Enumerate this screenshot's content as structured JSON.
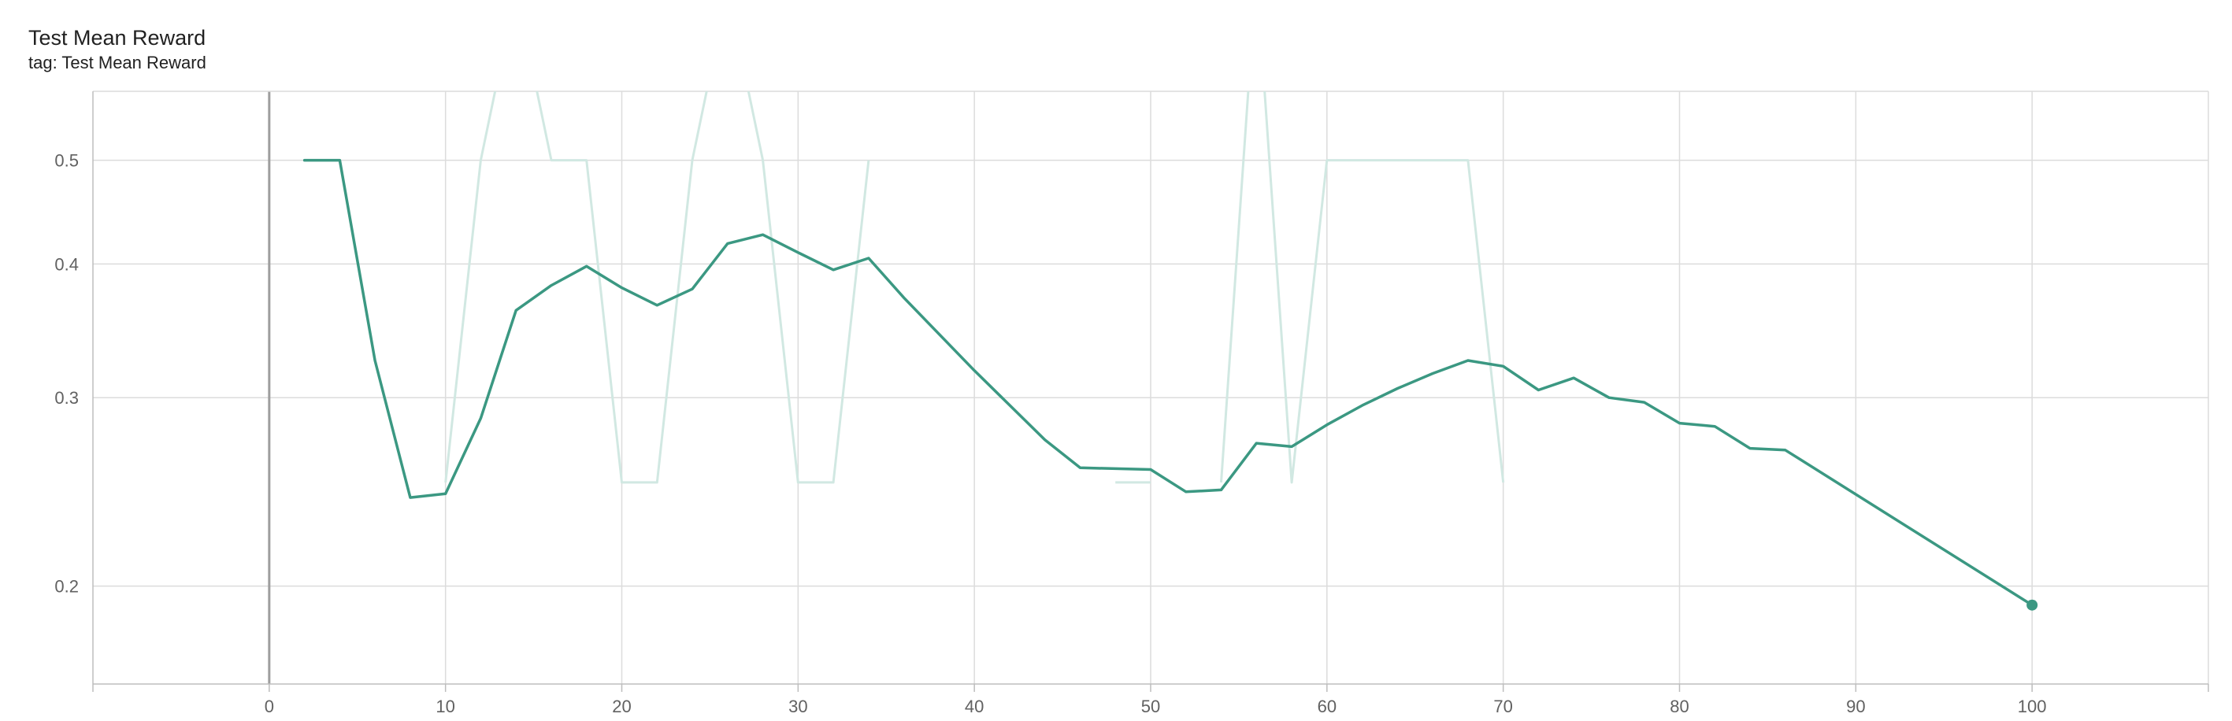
{
  "chart_data": {
    "type": "line",
    "title": "Test Mean Reward",
    "subtitle": "tag: Test Mean Reward",
    "xlabel": "",
    "ylabel": "",
    "y_scale": "log",
    "grid": true,
    "xlim": [
      -10,
      110
    ],
    "ylim": [
      0.162,
      0.58
    ],
    "x_ticks": [
      "0",
      "10",
      "20",
      "30",
      "40",
      "50",
      "60",
      "70",
      "80",
      "90",
      "100"
    ],
    "y_ticks": [
      "0.2",
      "0.3",
      "0.4",
      "0.5"
    ],
    "x_tick_values": [
      0,
      10,
      20,
      30,
      40,
      50,
      60,
      70,
      80,
      90,
      100
    ],
    "y_tick_values": [
      0.2,
      0.3,
      0.4,
      0.5
    ],
    "colors": {
      "smoothed": "#3b9882",
      "raw": "#d1e8e2",
      "grid": "#dcdcdc",
      "zero_axis": "#9e9e9e",
      "frame": "#bdbdbd"
    },
    "series": [
      {
        "role": "raw",
        "segments": [
          [
            [
              10,
              0.25
            ],
            [
              12,
              0.5
            ],
            [
              13,
              0.6
            ]
          ],
          [
            [
              15,
              0.6
            ],
            [
              16,
              0.5
            ],
            [
              18,
              0.5
            ],
            [
              20,
              0.25
            ],
            [
              22,
              0.25
            ],
            [
              24,
              0.5
            ],
            [
              25,
              0.6
            ]
          ],
          [
            [
              27,
              0.6
            ],
            [
              28,
              0.5
            ],
            [
              30,
              0.25
            ],
            [
              32,
              0.25
            ],
            [
              34,
              0.5
            ]
          ],
          [
            [
              48,
              0.25
            ],
            [
              50,
              0.25
            ]
          ],
          [
            [
              54,
              0.25
            ],
            [
              55.6,
              0.6
            ]
          ],
          [
            [
              56.4,
              0.6
            ],
            [
              58,
              0.25
            ],
            [
              60,
              0.5
            ],
            [
              62,
              0.5
            ],
            [
              64,
              0.5
            ],
            [
              66,
              0.5
            ],
            [
              68,
              0.5
            ],
            [
              70,
              0.25
            ]
          ]
        ]
      },
      {
        "role": "smoothed",
        "x": [
          2,
          4,
          6,
          8,
          10,
          12,
          14,
          16,
          18,
          20,
          22,
          24,
          26,
          28,
          30,
          32,
          34,
          36,
          40,
          44,
          46,
          50,
          52,
          54,
          56,
          58,
          60,
          62,
          64,
          66,
          68,
          70,
          72,
          74,
          76,
          78,
          80,
          82,
          84,
          86,
          100
        ],
        "y": [
          0.5,
          0.5,
          0.325,
          0.242,
          0.244,
          0.287,
          0.362,
          0.382,
          0.398,
          0.38,
          0.366,
          0.379,
          0.418,
          0.426,
          0.41,
          0.395,
          0.405,
          0.372,
          0.318,
          0.274,
          0.258,
          0.257,
          0.245,
          0.246,
          0.272,
          0.27,
          0.283,
          0.295,
          0.306,
          0.316,
          0.325,
          0.321,
          0.305,
          0.313,
          0.3,
          0.297,
          0.284,
          0.282,
          0.269,
          0.268,
          0.192
        ]
      }
    ]
  }
}
